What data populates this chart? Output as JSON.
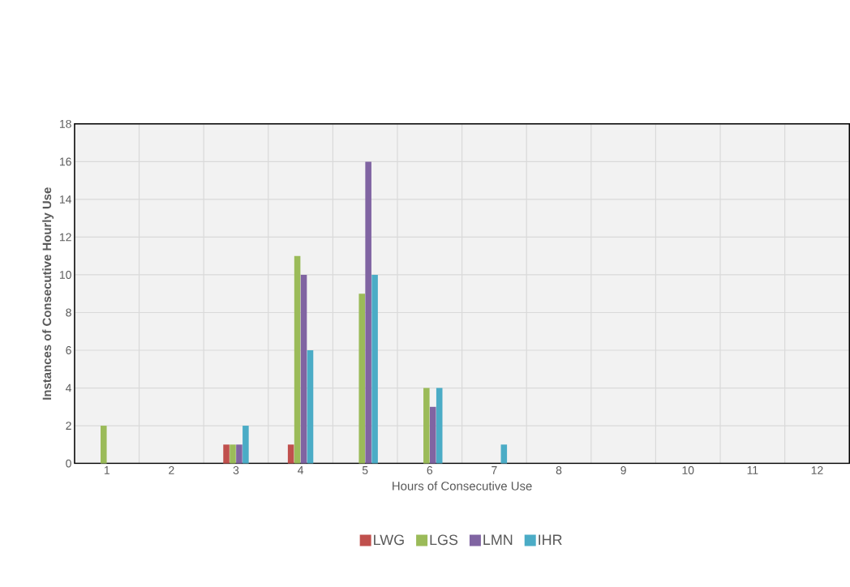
{
  "chart_data": {
    "type": "bar",
    "xlabel": "Hours of Consecutive Use",
    "ylabel": "Instances of  Consecutive Hourly Use",
    "categories": [
      "1",
      "2",
      "3",
      "4",
      "5",
      "6",
      "7",
      "8",
      "9",
      "10",
      "11",
      "12"
    ],
    "series": [
      {
        "name": "LWG",
        "color": "#c0504d",
        "values": [
          0,
          0,
          1,
          1,
          0,
          0,
          0,
          0,
          0,
          0,
          0,
          0
        ]
      },
      {
        "name": "LGS",
        "color": "#9bbb59",
        "values": [
          2,
          0,
          1,
          11,
          9,
          4,
          0,
          0,
          0,
          0,
          0,
          0
        ]
      },
      {
        "name": "LMN",
        "color": "#8064a2",
        "values": [
          0,
          0,
          1,
          10,
          16,
          3,
          0,
          0,
          0,
          0,
          0,
          0
        ]
      },
      {
        "name": "IHR",
        "color": "#4bacc6",
        "values": [
          0,
          0,
          2,
          6,
          10,
          4,
          1,
          0,
          0,
          0,
          0,
          0
        ]
      }
    ],
    "ylim": [
      0,
      18
    ],
    "yticks": [
      0,
      2,
      4,
      6,
      8,
      10,
      12,
      14,
      16,
      18
    ],
    "grid": true,
    "legend": "bottom"
  }
}
